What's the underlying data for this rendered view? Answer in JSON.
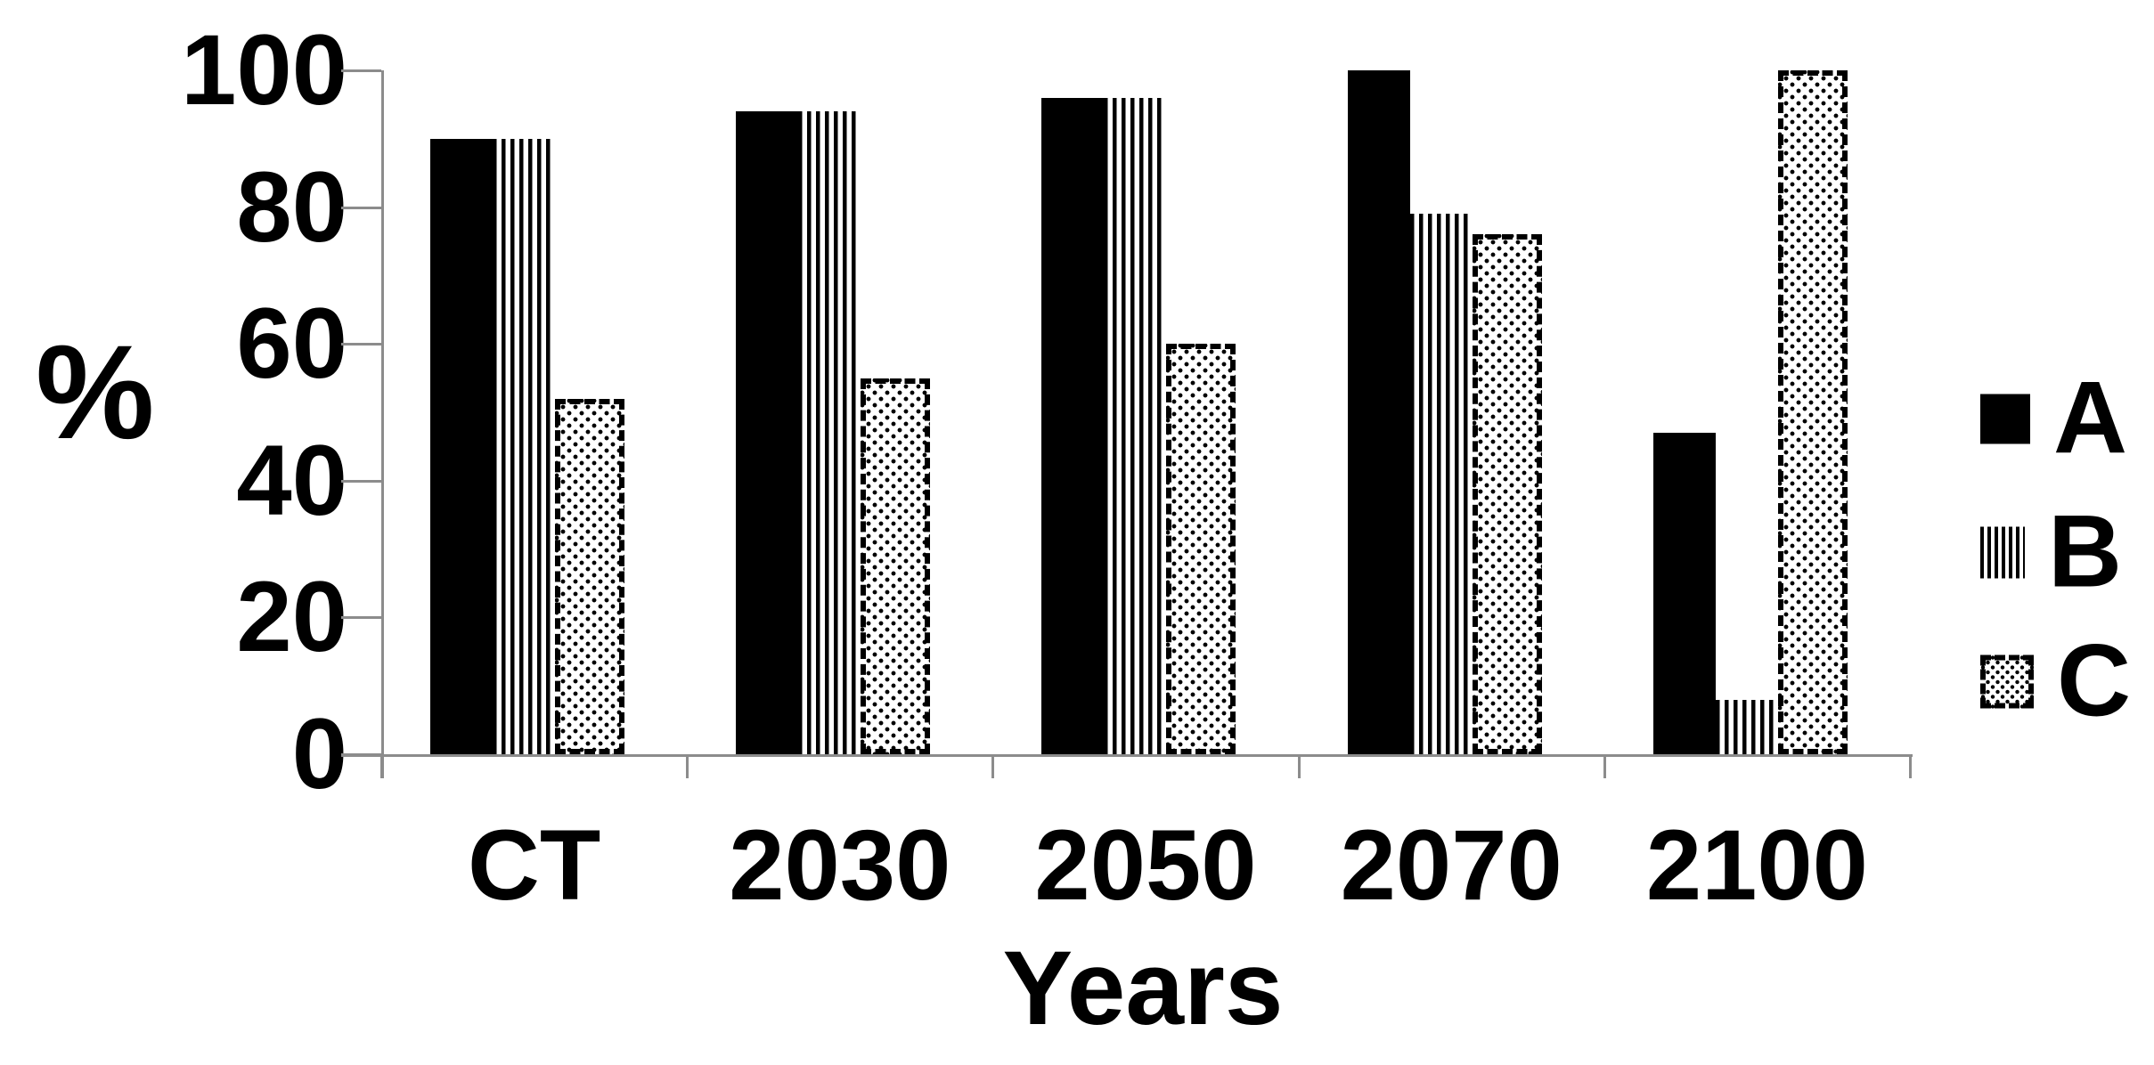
{
  "chart_data": {
    "type": "bar",
    "title": "",
    "xlabel": "Years",
    "ylabel": "%",
    "categories": [
      "CT",
      "2030",
      "2050",
      "2070",
      "2100"
    ],
    "series": [
      {
        "name": "A",
        "pattern": "solid-black-fill",
        "values": [
          90,
          94,
          96,
          100,
          47
        ]
      },
      {
        "name": "B",
        "pattern": "vertical-stripes",
        "values": [
          90,
          94,
          96,
          79,
          8
        ]
      },
      {
        "name": "C",
        "pattern": "dot-grid-with-dashed-border",
        "values": [
          52,
          55,
          60,
          76,
          100
        ]
      }
    ],
    "y_ticks": [
      0,
      20,
      40,
      60,
      80,
      100
    ],
    "ylim": [
      0,
      100
    ],
    "grid": false,
    "legend_position": "right",
    "legend_entries": [
      "A",
      "B",
      "C"
    ],
    "axis_color": "#8c8c8c",
    "bar_color": "#000000",
    "background_color": "#ffffff"
  }
}
